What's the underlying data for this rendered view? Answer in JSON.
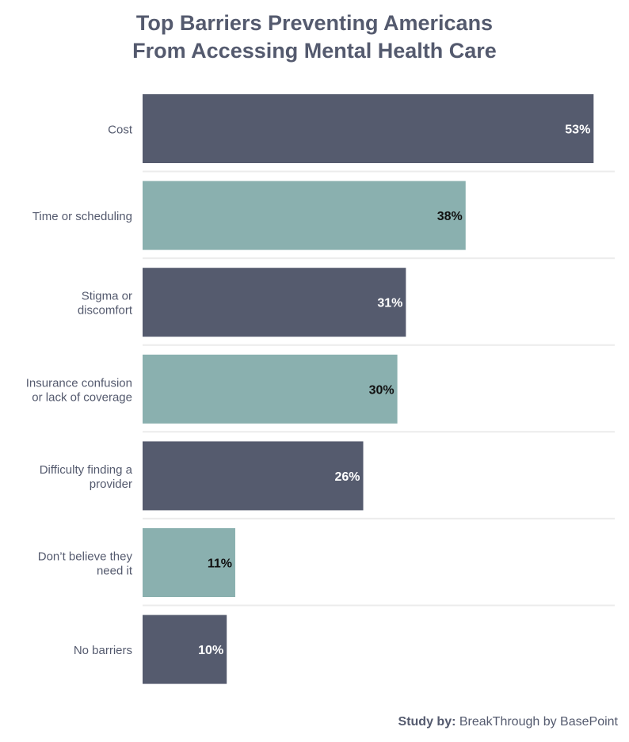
{
  "chart_data": {
    "type": "bar",
    "orientation": "horizontal",
    "title_lines": [
      "Top Barriers Preventing Americans",
      "From Accessing Mental Health Care"
    ],
    "categories": [
      [
        "Cost"
      ],
      [
        "Time or scheduling"
      ],
      [
        "Stigma or",
        "discomfort"
      ],
      [
        "Insurance confusion",
        "or lack of coverage"
      ],
      [
        "Difficulty finding a",
        "provider"
      ],
      [
        "Don’t believe they",
        "need it"
      ],
      [
        "No barriers"
      ]
    ],
    "values": [
      53,
      38,
      31,
      30,
      26,
      11,
      10
    ],
    "data_labels": [
      "53%",
      "38%",
      "31%",
      "30%",
      "26%",
      "11%",
      "10%"
    ],
    "unit": "%",
    "xlim": [
      0,
      55
    ],
    "grid": false,
    "colors": [
      "#555b6e",
      "#8ab0af"
    ],
    "label_colors": [
      "#ffffff",
      "#111111"
    ]
  },
  "footer": {
    "label": "Study by:",
    "source": "BreakThrough by BasePoint"
  }
}
